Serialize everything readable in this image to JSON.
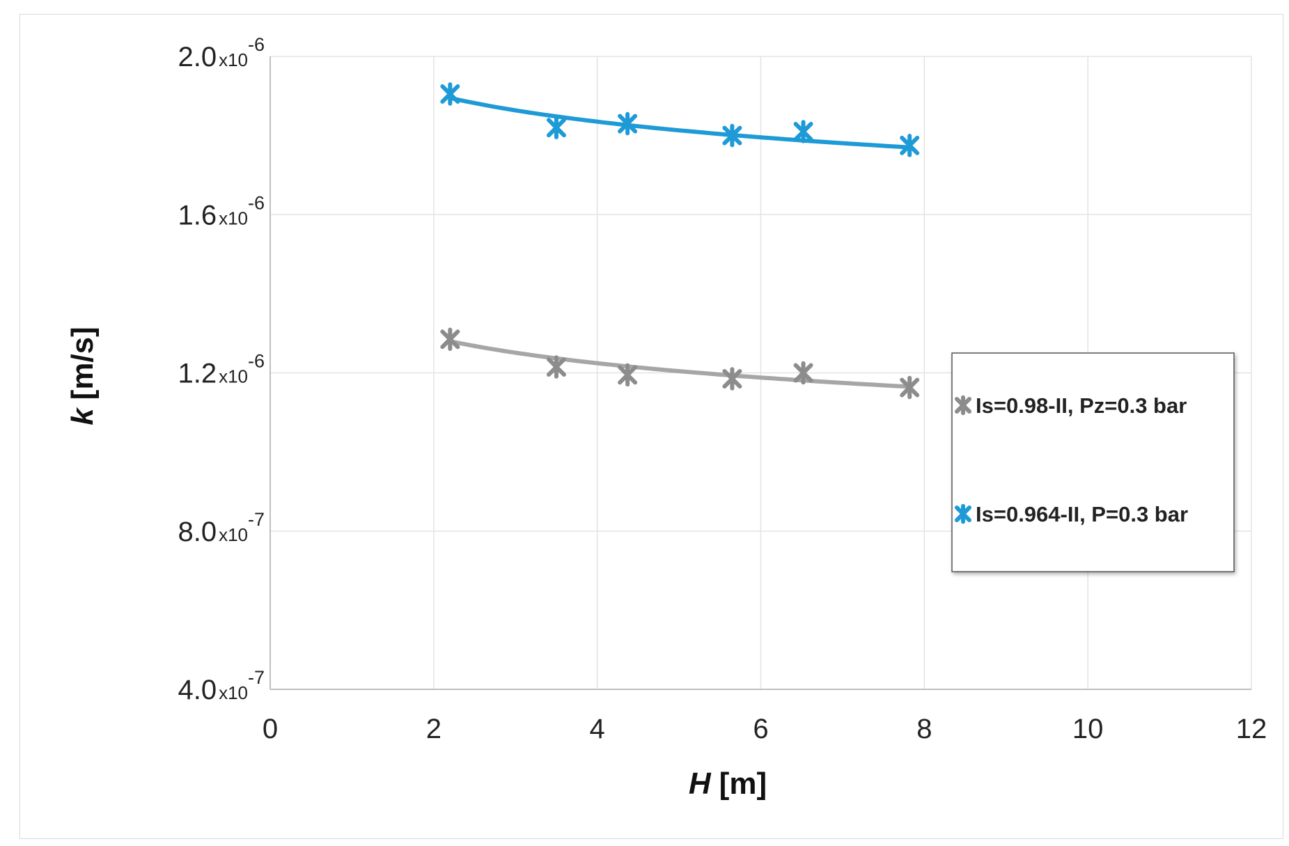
{
  "chart_data": {
    "type": "scatter",
    "title": "",
    "xlabel": "H",
    "xlabel_unit": "[m]",
    "ylabel": "k",
    "ylabel_unit": "[m/s]",
    "xlim": [
      0,
      12
    ],
    "ylim": [
      4e-07,
      2e-06
    ],
    "grid": true,
    "legend_position": "right",
    "x_ticks": [
      {
        "value": 0,
        "label": "0"
      },
      {
        "value": 2,
        "label": "2"
      },
      {
        "value": 4,
        "label": "4"
      },
      {
        "value": 6,
        "label": "6"
      },
      {
        "value": 8,
        "label": "8"
      },
      {
        "value": 10,
        "label": "10"
      },
      {
        "value": 12,
        "label": "12"
      }
    ],
    "y_ticks": [
      {
        "value": 4e-07,
        "mantissa": "4.0",
        "times": "x10",
        "exp": "-7"
      },
      {
        "value": 8e-07,
        "mantissa": "8.0",
        "times": "x10",
        "exp": "-7"
      },
      {
        "value": 1.2e-06,
        "mantissa": "1.2",
        "times": "x10",
        "exp": "-6"
      },
      {
        "value": 1.6e-06,
        "mantissa": "1.6",
        "times": "x10",
        "exp": "-6"
      },
      {
        "value": 2e-06,
        "mantissa": "2.0",
        "times": "x10",
        "exp": "-6"
      }
    ],
    "series": [
      {
        "name": "Is=0.98-II, Pz=0.3 bar",
        "color": "#8c8c8c",
        "trend_color": "#a6a6a6",
        "marker": "asterisk",
        "x": [
          2.2,
          3.5,
          4.37,
          5.65,
          6.52,
          7.82
        ],
        "y": [
          1.285e-06,
          1.215e-06,
          1.195e-06,
          1.185e-06,
          1.2e-06,
          1.163e-06
        ],
        "trend": {
          "type": "power",
          "x_range": [
            2.2,
            7.82
          ],
          "y_start": 1.28e-06,
          "y_end": 1.165e-06
        }
      },
      {
        "name": "Is=0.964-II, P=0.3 bar",
        "color": "#1e9ad6",
        "trend_color": "#1e9ad6",
        "marker": "asterisk",
        "x": [
          2.2,
          3.5,
          4.37,
          5.65,
          6.52,
          7.82
        ],
        "y": [
          1.905e-06,
          1.82e-06,
          1.83e-06,
          1.8e-06,
          1.81e-06,
          1.775e-06
        ],
        "trend": {
          "type": "power",
          "x_range": [
            2.2,
            7.82
          ],
          "y_start": 1.895e-06,
          "y_end": 1.77e-06
        }
      }
    ]
  }
}
